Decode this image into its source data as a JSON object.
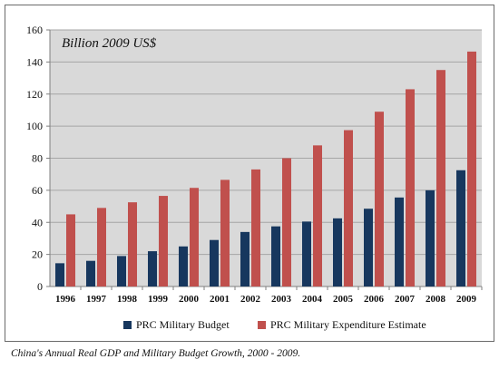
{
  "chart_data": {
    "type": "bar",
    "title": "Billion 2009 US$",
    "xlabel": "",
    "ylabel": "",
    "ylim": [
      0,
      160
    ],
    "yticks": [
      0,
      20,
      40,
      60,
      80,
      100,
      120,
      140,
      160
    ],
    "grid": true,
    "legend_position": "bottom",
    "categories": [
      "1996",
      "1997",
      "1998",
      "1999",
      "2000",
      "2001",
      "2002",
      "2003",
      "2004",
      "2005",
      "2006",
      "2007",
      "2008",
      "2009"
    ],
    "series": [
      {
        "name": "PRC Military Budget",
        "color": "#17375e",
        "values": [
          14.5,
          16,
          19,
          22,
          25,
          29,
          34,
          37.5,
          40.5,
          42.5,
          48.5,
          55.5,
          60,
          72.5
        ]
      },
      {
        "name": "PRC Military Expenditure Estimate",
        "color": "#c0504d",
        "values": [
          45,
          49,
          52.5,
          56.5,
          61.5,
          66.5,
          73,
          80,
          88,
          97.5,
          109,
          123,
          135,
          146.5
        ]
      }
    ]
  },
  "caption": "China's Annual Real GDP and Military Budget Growth, 2000 - 2009."
}
